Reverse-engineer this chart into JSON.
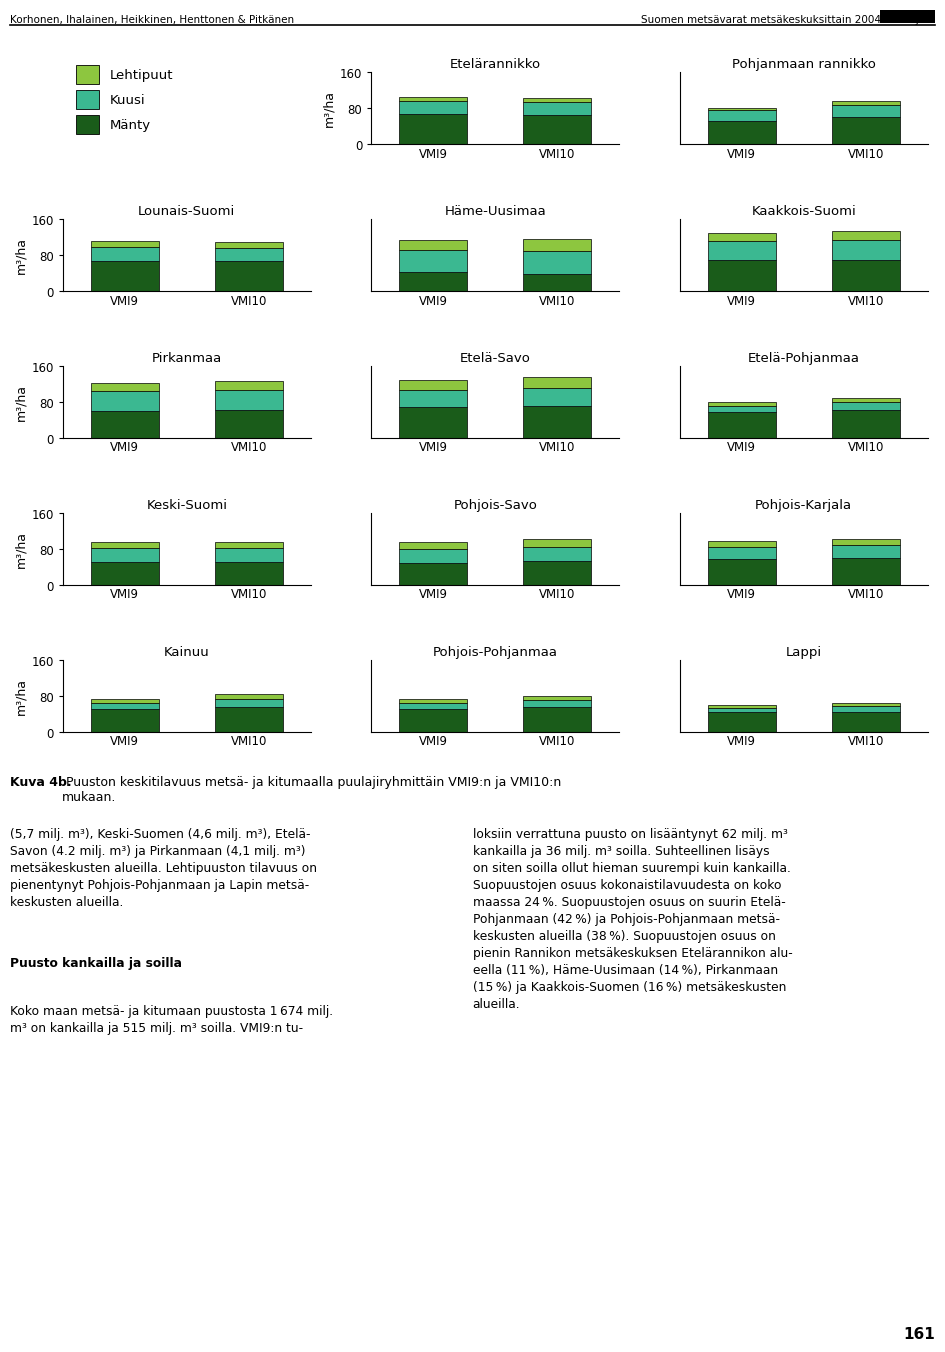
{
  "header_left": "Korhonen, Ihalainen, Heikkinen, Henttonen & Pitkänen",
  "header_right": "Suomen metsävarat metsäkeskuksittain 2004–2006 ja...",
  "legend_labels": [
    "Lehtipuut",
    "Kuusi",
    "Mänty"
  ],
  "colors": [
    "#8DC63F",
    "#3BB891",
    "#1A5C1A"
  ],
  "ylabel": "m³/ha",
  "yticks": [
    0,
    80,
    160
  ],
  "ylim": [
    0,
    160
  ],
  "xtick_labels": [
    "VMI9",
    "VMI10"
  ],
  "regions": [
    {
      "name": "Etelärannikko",
      "row": 0,
      "col": 1,
      "VMI9": [
        8,
        28,
        68
      ],
      "VMI10": [
        9,
        28,
        65
      ]
    },
    {
      "name": "Pohjanmaan rannikko",
      "row": 0,
      "col": 2,
      "VMI9": [
        5,
        24,
        52
      ],
      "VMI10": [
        7,
        28,
        60
      ]
    },
    {
      "name": "Lounais-Suomi",
      "row": 1,
      "col": 0,
      "VMI9": [
        14,
        30,
        68
      ],
      "VMI10": [
        14,
        28,
        68
      ]
    },
    {
      "name": "Häme-Uusimaa",
      "row": 1,
      "col": 1,
      "VMI9": [
        22,
        50,
        42
      ],
      "VMI10": [
        26,
        52,
        38
      ]
    },
    {
      "name": "Kaakkois-Suomi",
      "row": 1,
      "col": 2,
      "VMI9": [
        18,
        42,
        70
      ],
      "VMI10": [
        20,
        44,
        70
      ]
    },
    {
      "name": "Pirkanmaa",
      "row": 2,
      "col": 0,
      "VMI9": [
        18,
        44,
        60
      ],
      "VMI10": [
        20,
        46,
        62
      ]
    },
    {
      "name": "Etelä-Savo",
      "row": 2,
      "col": 1,
      "VMI9": [
        22,
        38,
        70
      ],
      "VMI10": [
        24,
        40,
        72
      ]
    },
    {
      "name": "Etelä-Pohjanmaa",
      "row": 2,
      "col": 2,
      "VMI9": [
        8,
        14,
        58
      ],
      "VMI10": [
        9,
        18,
        62
      ]
    },
    {
      "name": "Keski-Suomi",
      "row": 3,
      "col": 0,
      "VMI9": [
        14,
        30,
        52
      ],
      "VMI10": [
        14,
        30,
        52
      ]
    },
    {
      "name": "Pohjois-Savo",
      "row": 3,
      "col": 1,
      "VMI9": [
        16,
        30,
        50
      ],
      "VMI10": [
        16,
        32,
        54
      ]
    },
    {
      "name": "Pohjois-Karjala",
      "row": 3,
      "col": 2,
      "VMI9": [
        12,
        28,
        58
      ],
      "VMI10": [
        12,
        30,
        60
      ]
    },
    {
      "name": "Kainuu",
      "row": 4,
      "col": 0,
      "VMI9": [
        8,
        14,
        52
      ],
      "VMI10": [
        10,
        18,
        56
      ]
    },
    {
      "name": "Pohjois-Pohjanmaa",
      "row": 4,
      "col": 1,
      "VMI9": [
        8,
        14,
        52
      ],
      "VMI10": [
        9,
        16,
        56
      ]
    },
    {
      "name": "Lappi",
      "row": 4,
      "col": 2,
      "VMI9": [
        6,
        10,
        44
      ],
      "VMI10": [
        6,
        12,
        46
      ]
    }
  ],
  "caption_bold": "Kuva 4b.",
  "caption_rest": " Puuston keskitilavuus metsä- ja kitumaalla puulajiryhmittäin VMI9:n ja VMI10:n\nmukaan.",
  "para_left_1": "(5,7 milj. m³), Keski-Suomen (4,6 milj. m³), Etelä-\nSavon (4.2 milj. m³) ja Pirkanmaan (4,1 milj. m³)\nmetsäkeskusten alueilla. Lehtipuuston tilavuus on\npienentynyt Pohjois-Pohjanmaan ja Lapin metsä-\nkeskusten alueilla.",
  "para_left_bold": "Puusto kankailla ja soilla",
  "para_left_2": "Koko maan metsä- ja kitumaan puustosta 1 674 milj.\nm³ on kankailla ja 515 milj. m³ soilla. VMI9:n tu-",
  "para_right": "loksiin verrattuna puusto on lisääntynyt 62 milj. m³\nkankailla ja 36 milj. m³ soilla. Suhteellinen lisäys\non siten soilla ollut hieman suurempi kuin kankailla.\nSuopuustojen osuus kokonaistilavuudesta on koko\nmaassa 24 %. Suopuustojen osuus on suurin Etelä-\nPohjanmaan (42 %) ja Pohjois-Pohjanmaan metsä-\nkeskusten alueilla (38 %). Suopuustojen osuus on\npienin Rannikon metsäkeskuksen Etelärannikon alu-\neella (11 %), Häme-Uusimaan (14 %), Pirkanmaan\n(15 %) ja Kaakkois-Suomen (16 %) metsäkeskusten\nalueilla.",
  "page_number": "161"
}
